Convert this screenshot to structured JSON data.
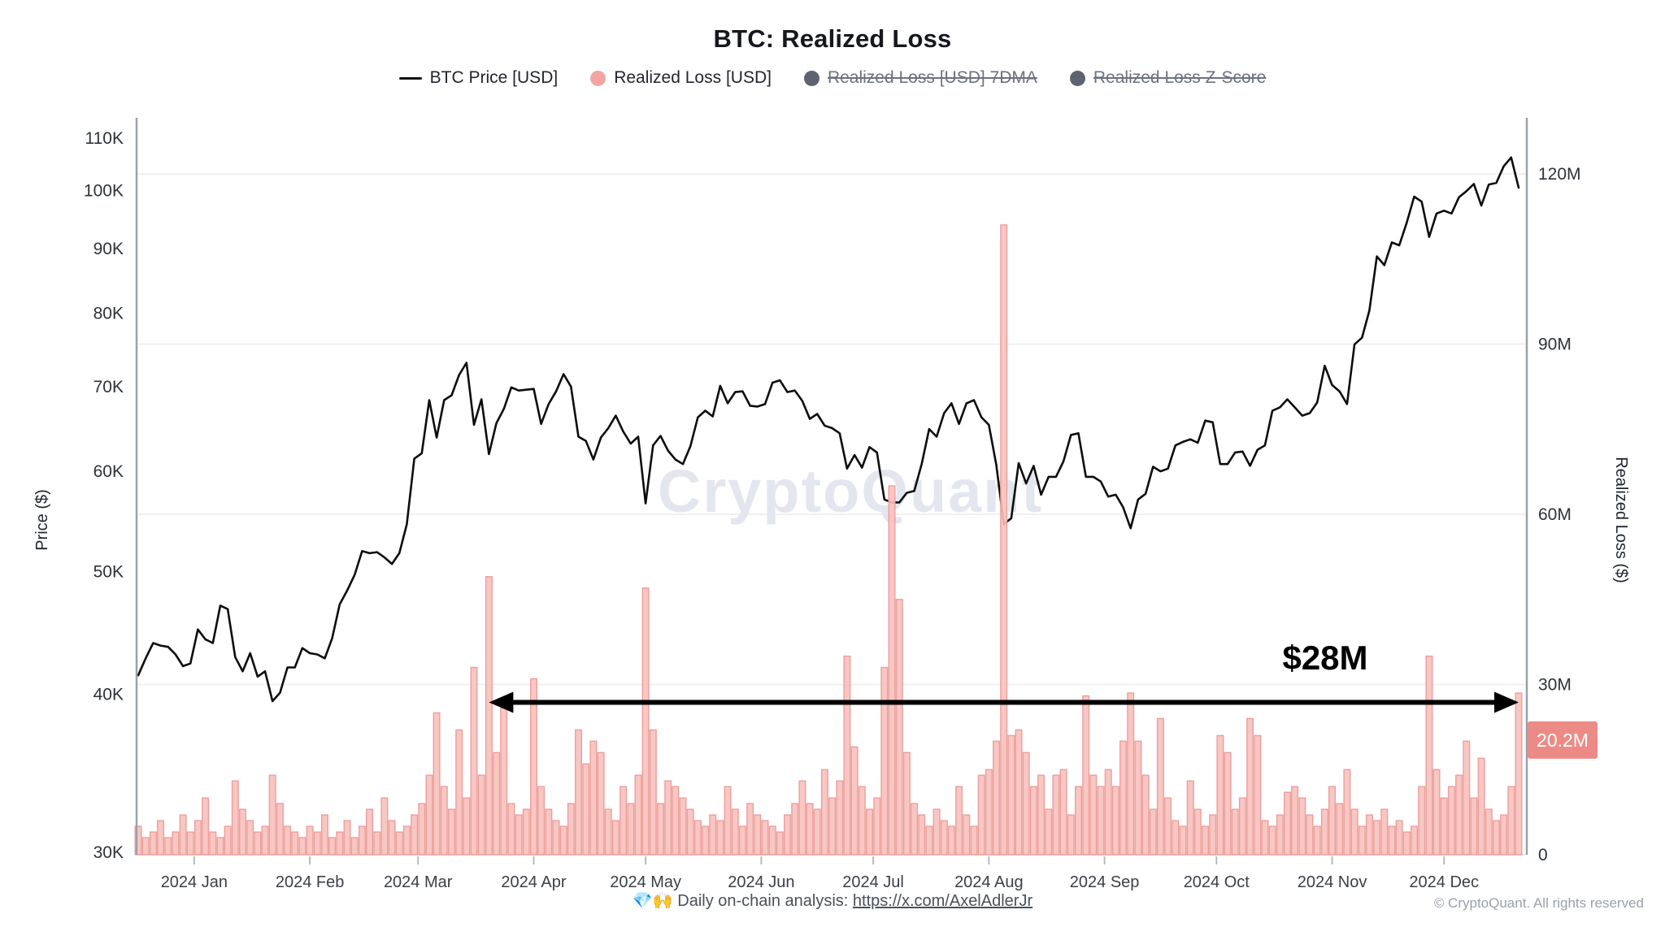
{
  "title": "BTC: Realized Loss",
  "legend": [
    {
      "label": "BTC Price [USD]",
      "marker": "line",
      "color": "#111111",
      "disabled": false
    },
    {
      "label": "Realized Loss [USD]",
      "marker": "dot",
      "color": "#f2a5a2",
      "disabled": false
    },
    {
      "label": "Realized Loss [USD] 7DMA",
      "marker": "dot",
      "color": "#5d6470",
      "disabled": true
    },
    {
      "label": "Realized Loss Z-Score",
      "marker": "dot",
      "color": "#5d6470",
      "disabled": true
    }
  ],
  "watermark": "CryptoQuant",
  "footer": {
    "emoji": "💎🙌",
    "text": "Daily on-chain analysis:",
    "link": "https://x.com/AxelAdlerJr"
  },
  "copyright": "© CryptoQuant. All rights reserved",
  "annotations": {
    "arrow_label": "$28M",
    "arrow_value_m": 28,
    "arrow_from_index": 47,
    "badge_text": "20.2M",
    "badge_value_m": 20.2
  },
  "colors": {
    "bar_fill": "#f6c1be",
    "bar_stroke": "#ef9e9a",
    "price_line": "#0d0d0d",
    "badge_bg": "#ec8b85",
    "grid": "#f0f0f1",
    "axis_line": "#9aa1ab",
    "tick_text": "#2d3339",
    "month_text": "#3b4046",
    "watermark": "#e4e6ef",
    "annotation": "#000000"
  },
  "chart_data": {
    "type": "mixed",
    "title": "BTC: Realized Loss",
    "x_start": "2023-12-17",
    "x_end": "2024-12-19",
    "step_days": 2,
    "total_days": 370,
    "grid": true,
    "legend_position": "top",
    "x_axis": {
      "months": [
        "2024 Jan",
        "2024 Feb",
        "2024 Mar",
        "2024 Apr",
        "2024 May",
        "2024 Jun",
        "2024 Jul",
        "2024 Aug",
        "2024 Sep",
        "2024 Oct",
        "2024 Nov",
        "2024 Dec"
      ],
      "month_day_offsets": [
        15,
        46,
        75,
        106,
        136,
        167,
        197,
        228,
        259,
        289,
        320,
        350
      ]
    },
    "price_axis": {
      "label": "Price ($)",
      "scale": "log",
      "ticks": [
        {
          "label": "110K",
          "v": 110
        },
        {
          "label": "100K",
          "v": 100
        },
        {
          "label": "90K",
          "v": 90
        },
        {
          "label": "80K",
          "v": 80
        },
        {
          "label": "70K",
          "v": 70
        },
        {
          "label": "60K",
          "v": 60
        },
        {
          "label": "50K",
          "v": 50
        },
        {
          "label": "40K",
          "v": 40
        },
        {
          "label": "30K",
          "v": 30
        }
      ],
      "range_k": [
        30,
        110
      ]
    },
    "loss_axis": {
      "label": "Realized Loss ($)",
      "scale": "linear",
      "ticks": [
        {
          "label": "120M",
          "v": 120
        },
        {
          "label": "90M",
          "v": 90
        },
        {
          "label": "60M",
          "v": 60
        },
        {
          "label": "30M",
          "v": 30
        },
        {
          "label": "0",
          "v": 0
        }
      ],
      "range_m": [
        0,
        129
      ]
    },
    "series": [
      {
        "name": "BTC Price [USD]",
        "type": "line",
        "axis": "price",
        "unit": "K USD",
        "values": [
          41.4,
          42.7,
          43.9,
          43.7,
          43.6,
          43.0,
          42.1,
          42.3,
          45.0,
          44.2,
          43.9,
          47.0,
          46.7,
          42.8,
          41.7,
          43.1,
          41.3,
          41.7,
          39.5,
          40.1,
          42.0,
          42.0,
          43.5,
          43.1,
          43.0,
          42.7,
          44.3,
          47.1,
          48.3,
          49.7,
          51.9,
          51.7,
          51.8,
          51.3,
          50.7,
          51.7,
          54.5,
          61.4,
          62.0,
          68.3,
          63.8,
          68.3,
          68.9,
          71.5,
          73.1,
          65.3,
          68.4,
          61.9,
          65.5,
          67.2,
          69.9,
          69.5,
          69.6,
          69.7,
          65.4,
          67.8,
          69.4,
          71.6,
          70.0,
          63.9,
          63.4,
          61.3,
          63.8,
          64.9,
          66.4,
          64.5,
          63.1,
          63.9,
          56.6,
          62.9,
          64.0,
          62.3,
          61.3,
          60.8,
          62.8,
          66.2,
          67.0,
          66.3,
          70.1,
          67.9,
          69.3,
          69.4,
          67.6,
          67.5,
          67.8,
          70.5,
          70.8,
          69.3,
          69.5,
          68.2,
          66.0,
          66.6,
          65.2,
          64.9,
          64.3,
          60.3,
          61.8,
          60.4,
          62.7,
          62.1,
          57.0,
          56.7,
          56.7,
          57.7,
          57.9,
          60.8,
          64.8,
          63.9,
          66.7,
          67.9,
          65.4,
          67.9,
          68.3,
          66.2,
          65.3,
          60.7,
          54.5,
          55.1,
          60.9,
          58.7,
          60.6,
          57.5,
          59.4,
          59.4,
          61.1,
          64.1,
          64.3,
          59.4,
          59.4,
          58.9,
          57.3,
          57.5,
          56.2,
          54.1,
          57.0,
          57.6,
          60.5,
          60.0,
          60.3,
          62.9,
          63.3,
          63.6,
          63.2,
          65.8,
          65.6,
          60.8,
          60.8,
          62.1,
          62.2,
          60.6,
          62.4,
          62.9,
          67.0,
          67.4,
          68.4,
          67.4,
          66.4,
          66.7,
          68.0,
          72.7,
          70.2,
          69.4,
          67.8,
          75.6,
          76.5,
          80.4,
          88.7,
          87.3,
          91.0,
          90.5,
          94.3,
          98.9,
          98.0,
          91.9,
          95.9,
          96.4,
          95.9,
          98.8,
          99.9,
          101.2,
          97.3,
          101.1,
          101.4,
          104.5,
          106.2,
          100.5
        ]
      },
      {
        "name": "Realized Loss [USD]",
        "type": "bar",
        "axis": "loss",
        "unit": "M USD",
        "values": [
          5,
          3,
          4,
          6,
          3,
          4,
          7,
          4,
          6,
          10,
          4,
          3,
          5,
          13,
          8,
          6,
          4,
          5,
          14,
          9,
          5,
          4,
          3,
          5,
          4,
          7,
          3,
          4,
          6,
          3,
          5,
          8,
          4,
          10,
          6,
          4,
          5,
          7,
          9,
          14,
          25,
          12,
          8,
          22,
          10,
          33,
          14,
          49,
          18,
          27,
          9,
          7,
          8,
          31,
          12,
          8,
          6,
          5,
          9,
          22,
          16,
          20,
          18,
          8,
          6,
          12,
          9,
          14,
          47,
          22,
          9,
          13,
          12,
          10,
          8,
          6,
          5,
          7,
          6,
          12,
          8,
          5,
          9,
          7,
          6,
          5,
          4,
          7,
          9,
          13,
          9,
          8,
          15,
          10,
          13,
          35,
          19,
          12,
          8,
          10,
          33,
          65,
          45,
          18,
          9,
          7,
          5,
          8,
          6,
          5,
          12,
          7,
          5,
          14,
          15,
          20,
          111,
          21,
          22,
          18,
          12,
          14,
          8,
          14,
          15,
          7,
          12,
          28,
          14,
          12,
          15,
          12,
          20,
          28.5,
          20,
          14,
          8,
          24,
          10,
          6,
          5,
          13,
          8,
          5,
          7,
          21,
          18,
          8,
          10,
          24,
          21,
          6,
          5,
          7,
          11,
          12,
          10,
          7,
          5,
          8,
          12,
          9,
          15,
          8,
          5,
          7,
          6,
          8,
          5,
          6,
          4,
          5,
          12,
          35,
          15,
          10,
          12,
          14,
          20,
          10,
          17,
          8,
          6,
          7,
          12,
          28.5
        ]
      },
      {
        "name": "Realized Loss [USD] 7DMA",
        "type": "line",
        "axis": "loss",
        "hidden": true,
        "values": []
      },
      {
        "name": "Realized Loss Z-Score",
        "type": "line",
        "axis": "z",
        "hidden": true,
        "values": []
      }
    ]
  }
}
